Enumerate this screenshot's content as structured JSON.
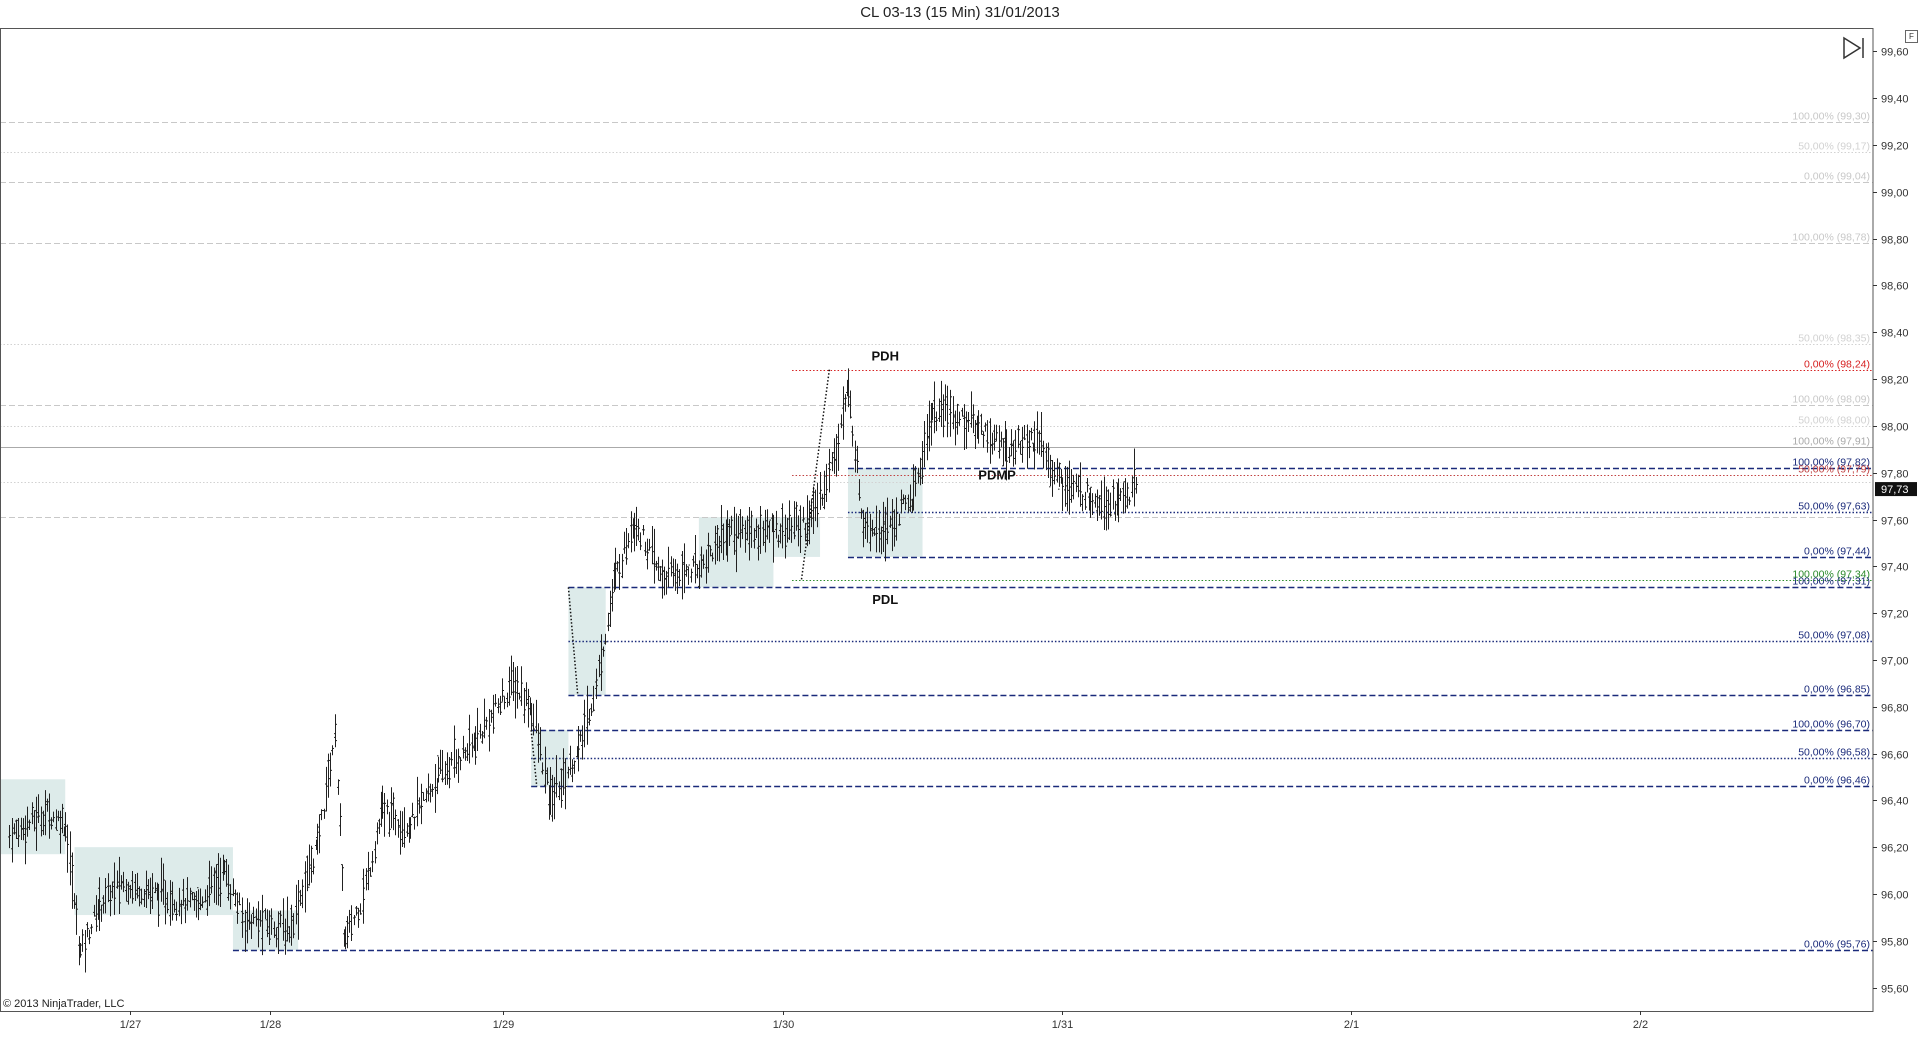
{
  "header": {
    "title": "CL 03-13 (15 Min)  31/01/2013"
  },
  "footer": {
    "copyright": "© 2013 NinjaTrader, LLC"
  },
  "controls": {
    "f_label": "F",
    "skip_icon": "skip-to-end-icon"
  },
  "chart_data": {
    "type": "ohlc",
    "title": "CL 03-13 (15 Min)  31/01/2013",
    "ylim": [
      95.5,
      99.7
    ],
    "y_ticks": [
      "95,60",
      "95,80",
      "96,00",
      "96,20",
      "96,40",
      "96,60",
      "96,80",
      "97,00",
      "97,20",
      "97,40",
      "97,60",
      "97,80",
      "98,00",
      "98,20",
      "98,40",
      "98,60",
      "98,80",
      "99,00",
      "99,20",
      "99,40",
      "99,60"
    ],
    "y_tick_values": [
      95.6,
      95.8,
      96.0,
      96.2,
      96.4,
      96.6,
      96.8,
      97.0,
      97.2,
      97.4,
      97.6,
      97.8,
      98.0,
      98.2,
      98.4,
      98.6,
      98.8,
      99.0,
      99.2,
      99.4,
      99.6
    ],
    "x_labels": [
      "1/27",
      "1/28",
      "1/29",
      "1/30",
      "1/31",
      "2/1",
      "2/2"
    ],
    "x_label_days": [
      0.45,
      1.2,
      2.45,
      3.95,
      5.45,
      7.0,
      8.55
    ],
    "xlim_days": [
      -0.25,
      9.8
    ],
    "last_price": "97,73",
    "last_price_value": 97.73,
    "levels": [
      {
        "value": 99.3,
        "label": "100,00% (99,30)",
        "color": "#c8c8c8",
        "style": "dash",
        "start_day": -0.25
      },
      {
        "value": 99.17,
        "label": "50,00% (99,17)",
        "color": "#d2d2d2",
        "style": "dot",
        "start_day": -0.25
      },
      {
        "value": 99.04,
        "label": "0,00% (99,04)",
        "color": "#c8c8c8",
        "style": "dash",
        "start_day": -0.25
      },
      {
        "value": 98.78,
        "label": "100,00% (98,78)",
        "color": "#c8c8c8",
        "style": "dash",
        "start_day": -0.25
      },
      {
        "value": 98.35,
        "label": "50,00% (98,35)",
        "color": "#d2d2d2",
        "style": "dot",
        "start_day": -0.25
      },
      {
        "value": 98.24,
        "label": "0,00% (98,24)",
        "color": "#d62020",
        "style": "dot",
        "start_day": 4.0
      },
      {
        "value": 98.09,
        "label": "100,00% (98,09)",
        "color": "#c8c8c8",
        "style": "dash",
        "start_day": -0.25
      },
      {
        "value": 98.0,
        "label": "50,00% (98,00)",
        "color": "#d2d2d2",
        "style": "dot",
        "start_day": -0.25
      },
      {
        "value": 97.91,
        "label": "100,00% (97,91)",
        "color": "#aaaaaa",
        "style": "solid",
        "start_day": -0.25
      },
      {
        "value": 97.82,
        "label": "100,00% (97,82)",
        "color": "#1a2a7a",
        "style": "dash",
        "start_day": 4.3
      },
      {
        "value": 97.79,
        "label": "50,00% (97,79)",
        "color": "#c04040",
        "style": "dot",
        "start_day": 4.0
      },
      {
        "value": 97.76,
        "label": "",
        "color": "#d2d2d2",
        "style": "dot",
        "start_day": -0.25
      },
      {
        "value": 97.63,
        "label": "50,00% (97,63)",
        "color": "#1a2a7a",
        "style": "dot",
        "start_day": 4.3
      },
      {
        "value": 97.61,
        "label": "",
        "color": "#c8c8c8",
        "style": "dash",
        "start_day": -0.25
      },
      {
        "value": 97.44,
        "label": "0,00% (97,44)",
        "color": "#1a2a7a",
        "style": "dash",
        "start_day": 4.3
      },
      {
        "value": 97.34,
        "label": "100,00% (97,34)",
        "color": "#2a8a2a",
        "style": "dot",
        "start_day": 4.0
      },
      {
        "value": 97.31,
        "label": "100,00% (97,31)",
        "color": "#1a2a7a",
        "style": "dash",
        "start_day": 2.8
      },
      {
        "value": 97.08,
        "label": "50,00% (97,08)",
        "color": "#1a2a7a",
        "style": "dot",
        "start_day": 2.8
      },
      {
        "value": 96.85,
        "label": "0,00% (96,85)",
        "color": "#1a2a7a",
        "style": "dash",
        "start_day": 2.8
      },
      {
        "value": 96.7,
        "label": "100,00% (96,70)",
        "color": "#1a2a7a",
        "style": "dash",
        "start_day": 2.6
      },
      {
        "value": 96.58,
        "label": "50,00% (96,58)",
        "color": "#1a2a7a",
        "style": "dot",
        "start_day": 2.6
      },
      {
        "value": 96.46,
        "label": "0,00% (96,46)",
        "color": "#1a2a7a",
        "style": "dash",
        "start_day": 2.6
      },
      {
        "value": 95.76,
        "label": "0,00% (95,76)",
        "color": "#1a2a7a",
        "style": "dash",
        "start_day": 1.0
      }
    ],
    "annotations": [
      {
        "text": "PDH",
        "day": 4.5,
        "value": 98.28
      },
      {
        "text": "PDMP",
        "day": 5.1,
        "value": 97.77
      },
      {
        "text": "PDL",
        "day": 4.5,
        "value": 97.24
      }
    ],
    "zones": [
      {
        "day_start": -0.25,
        "day_end": 0.1,
        "low": 96.17,
        "high": 96.49
      },
      {
        "day_start": 0.15,
        "day_end": 1.0,
        "low": 95.91,
        "high": 96.2
      },
      {
        "day_start": 1.0,
        "day_end": 1.35,
        "low": 95.76,
        "high": 95.93
      },
      {
        "day_start": 2.6,
        "day_end": 2.8,
        "low": 96.46,
        "high": 96.7
      },
      {
        "day_start": 2.8,
        "day_end": 3.0,
        "low": 96.85,
        "high": 97.31
      },
      {
        "day_start": 3.5,
        "day_end": 3.9,
        "low": 97.31,
        "high": 97.61
      },
      {
        "day_start": 3.9,
        "day_end": 4.15,
        "low": 97.44,
        "high": 97.61
      },
      {
        "day_start": 4.3,
        "day_end": 4.7,
        "low": 97.44,
        "high": 97.82
      }
    ],
    "trend_lines": [
      {
        "d1": 4.2,
        "v1": 98.24,
        "d2": 4.05,
        "v2": 97.34
      },
      {
        "d1": 2.8,
        "v1": 97.31,
        "d2": 2.85,
        "v2": 96.85
      },
      {
        "d1": 2.6,
        "v1": 96.7,
        "d2": 2.63,
        "v2": 96.46
      }
    ],
    "price_path": [
      {
        "day": -0.2,
        "price": 96.25
      },
      {
        "day": 0.0,
        "price": 96.35
      },
      {
        "day": 0.1,
        "price": 96.3
      },
      {
        "day": 0.18,
        "price": 95.75
      },
      {
        "day": 0.28,
        "price": 95.95
      },
      {
        "day": 0.4,
        "price": 96.05
      },
      {
        "day": 0.6,
        "price": 96.0
      },
      {
        "day": 0.8,
        "price": 95.95
      },
      {
        "day": 0.95,
        "price": 96.1
      },
      {
        "day": 1.05,
        "price": 95.9
      },
      {
        "day": 1.3,
        "price": 95.85
      },
      {
        "day": 1.45,
        "price": 96.2
      },
      {
        "day": 1.55,
        "price": 96.7
      },
      {
        "day": 1.6,
        "price": 95.8
      },
      {
        "day": 1.7,
        "price": 96.0
      },
      {
        "day": 1.8,
        "price": 96.35
      },
      {
        "day": 1.95,
        "price": 96.3
      },
      {
        "day": 2.1,
        "price": 96.5
      },
      {
        "day": 2.3,
        "price": 96.65
      },
      {
        "day": 2.5,
        "price": 96.9
      },
      {
        "day": 2.6,
        "price": 96.8
      },
      {
        "day": 2.7,
        "price": 96.4
      },
      {
        "day": 2.85,
        "price": 96.6
      },
      {
        "day": 2.95,
        "price": 96.9
      },
      {
        "day": 3.05,
        "price": 97.35
      },
      {
        "day": 3.15,
        "price": 97.6
      },
      {
        "day": 3.3,
        "price": 97.35
      },
      {
        "day": 3.5,
        "price": 97.4
      },
      {
        "day": 3.65,
        "price": 97.55
      },
      {
        "day": 3.9,
        "price": 97.55
      },
      {
        "day": 4.1,
        "price": 97.6
      },
      {
        "day": 4.2,
        "price": 97.8
      },
      {
        "day": 4.3,
        "price": 98.15
      },
      {
        "day": 4.38,
        "price": 97.6
      },
      {
        "day": 4.5,
        "price": 97.55
      },
      {
        "day": 4.65,
        "price": 97.7
      },
      {
        "day": 4.75,
        "price": 98.05
      },
      {
        "day": 4.85,
        "price": 98.05
      },
      {
        "day": 5.0,
        "price": 98.0
      },
      {
        "day": 5.15,
        "price": 97.9
      },
      {
        "day": 5.3,
        "price": 97.95
      },
      {
        "day": 5.45,
        "price": 97.75
      },
      {
        "day": 5.6,
        "price": 97.7
      },
      {
        "day": 5.75,
        "price": 97.68
      },
      {
        "day": 5.85,
        "price": 97.73
      }
    ]
  }
}
